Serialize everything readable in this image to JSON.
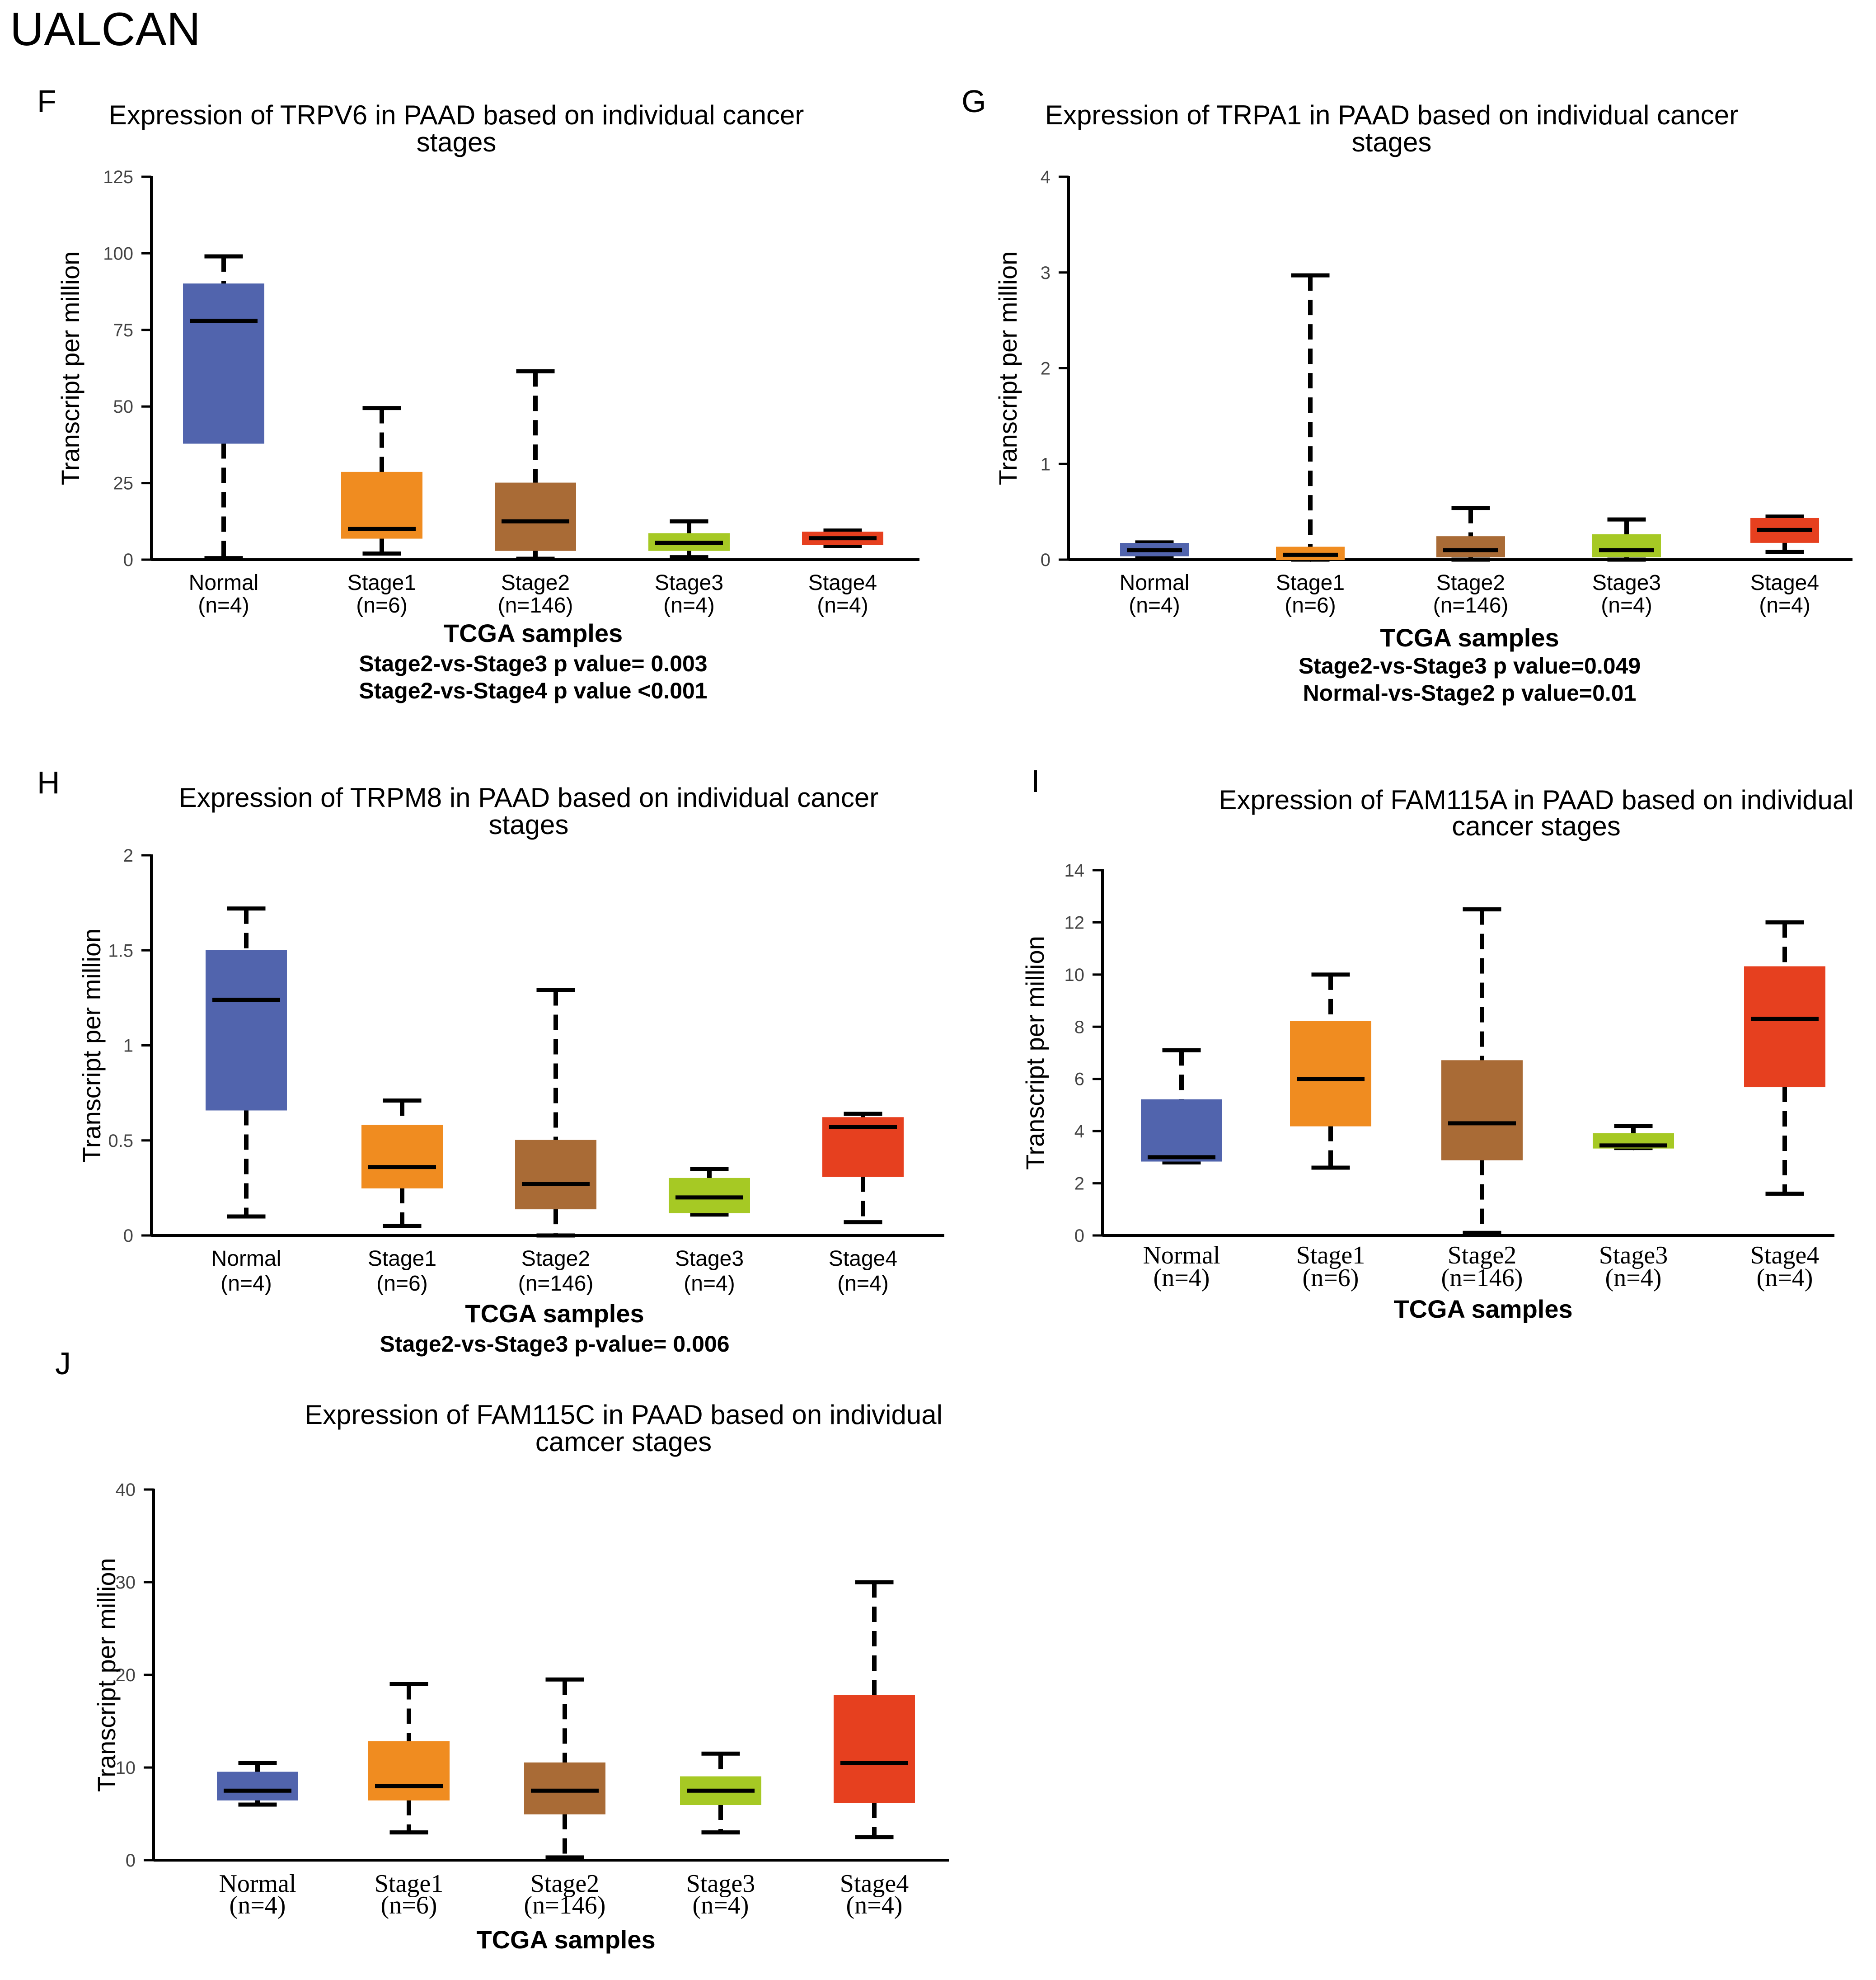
{
  "header": {
    "title": "UALCAN"
  },
  "colors": {
    "Normal": "#5164ad",
    "Stage1": "#f08c20",
    "Stage2": "#a96b36",
    "Stage3": "#a6c924",
    "Stage4": "#e6401f"
  },
  "chart_data": [
    {
      "id": "F",
      "panel_label": "F",
      "type": "boxplot",
      "title": [
        "Expression of TRPV6 in PAAD based on individual cancer",
        "stages"
      ],
      "ylabel": "Transcript per million",
      "xlabel": "TCGA samples",
      "ylim": [
        0,
        125
      ],
      "yticks": [
        "0",
        "25",
        "50",
        "75",
        "100",
        "125"
      ],
      "categories": [
        "Normal",
        "Stage1",
        "Stage2",
        "Stage3",
        "Stage4"
      ],
      "n_labels": [
        "(n=4)",
        "(n=6)",
        "(n=146)",
        "(n=4)",
        "(n=4)"
      ],
      "boxes": [
        {
          "min": 0.5,
          "q1": 38,
          "median": 78,
          "q3": 90,
          "max": 99
        },
        {
          "min": 2,
          "q1": 7,
          "median": 10,
          "q3": 28.5,
          "max": 49.5
        },
        {
          "min": 0.3,
          "q1": 3,
          "median": 12.5,
          "q3": 25,
          "max": 61.5
        },
        {
          "min": 0.8,
          "q1": 3,
          "median": 5.5,
          "q3": 8.5,
          "max": 12.5
        },
        {
          "min": 4.5,
          "q1": 5,
          "median": 7,
          "q3": 9,
          "max": 9.5
        }
      ],
      "stats": [
        "Stage2-vs-Stage3 p value= 0.003",
        "Stage2-vs-Stage4 p value <0.001"
      ]
    },
    {
      "id": "G",
      "panel_label": "G",
      "type": "boxplot",
      "title": [
        "Expression of TRPA1 in PAAD based on individual cancer",
        "stages"
      ],
      "ylabel": "Transcript per million",
      "xlabel": "TCGA samples",
      "ylim": [
        0,
        4
      ],
      "yticks": [
        "0",
        "1",
        "2",
        "3",
        "4"
      ],
      "categories": [
        "Normal",
        "Stage1",
        "Stage2",
        "Stage3",
        "Stage4"
      ],
      "n_labels": [
        "(n=4)",
        "(n=6)",
        "(n=146)",
        "(n=4)",
        "(n=4)"
      ],
      "boxes": [
        {
          "min": 0.03,
          "q1": 0.04,
          "median": 0.1,
          "q3": 0.17,
          "max": 0.18
        },
        {
          "min": 0.0,
          "q1": 0.0,
          "median": 0.05,
          "q3": 0.13,
          "max": 2.97
        },
        {
          "min": 0.0,
          "q1": 0.03,
          "median": 0.1,
          "q3": 0.24,
          "max": 0.54
        },
        {
          "min": 0.0,
          "q1": 0.03,
          "median": 0.1,
          "q3": 0.26,
          "max": 0.42
        },
        {
          "min": 0.08,
          "q1": 0.18,
          "median": 0.31,
          "q3": 0.43,
          "max": 0.45
        }
      ],
      "stats": [
        "Stage2-vs-Stage3 p value=0.049",
        "Normal-vs-Stage2 p value=0.01"
      ]
    },
    {
      "id": "H",
      "panel_label": "H",
      "type": "boxplot",
      "title": [
        "Expression of TRPM8 in PAAD based on individual cancer",
        "stages"
      ],
      "ylabel": "Transcript per million",
      "xlabel": "TCGA samples",
      "ylim": [
        0,
        2
      ],
      "yticks": [
        "0",
        "0.5",
        "1",
        "1.5",
        "2"
      ],
      "categories": [
        "Normal",
        "Stage1",
        "Stage2",
        "Stage3",
        "Stage4"
      ],
      "n_labels": [
        "(n=4)",
        "(n=6)",
        "(n=146)",
        "(n=4)",
        "(n=4)"
      ],
      "boxes": [
        {
          "min": 0.1,
          "q1": 0.66,
          "median": 1.24,
          "q3": 1.5,
          "max": 1.72
        },
        {
          "min": 0.05,
          "q1": 0.25,
          "median": 0.36,
          "q3": 0.58,
          "max": 0.71
        },
        {
          "min": 0.0,
          "q1": 0.14,
          "median": 0.27,
          "q3": 0.5,
          "max": 1.29
        },
        {
          "min": 0.11,
          "q1": 0.12,
          "median": 0.2,
          "q3": 0.3,
          "max": 0.35
        },
        {
          "min": 0.07,
          "q1": 0.31,
          "median": 0.57,
          "q3": 0.62,
          "max": 0.64
        }
      ],
      "stats": [
        "Stage2-vs-Stage3 p-value= 0.006"
      ]
    },
    {
      "id": "I",
      "panel_label": "I",
      "type": "boxplot",
      "serif_categories": true,
      "title": [
        "Expression of FAM115A in PAAD based on individual",
        "cancer stages"
      ],
      "ylabel": "Transcript per million",
      "xlabel": "TCGA samples",
      "ylim": [
        0,
        14
      ],
      "yticks": [
        "0",
        "2",
        "4",
        "6",
        "8",
        "10",
        "12",
        "14"
      ],
      "categories": [
        "Normal",
        "Stage1",
        "Stage2",
        "Stage3",
        "Stage4"
      ],
      "n_labels": [
        "(n=4)",
        "(n=6)",
        "(n=146)",
        "(n=4)",
        "(n=4)"
      ],
      "boxes": [
        {
          "min": 2.8,
          "q1": 2.85,
          "median": 3.0,
          "q3": 5.2,
          "max": 7.1
        },
        {
          "min": 2.6,
          "q1": 4.2,
          "median": 6.0,
          "q3": 8.2,
          "max": 10.0
        },
        {
          "min": 0.1,
          "q1": 2.9,
          "median": 4.3,
          "q3": 6.7,
          "max": 12.5
        },
        {
          "min": 3.35,
          "q1": 3.35,
          "median": 3.45,
          "q3": 3.9,
          "max": 4.2
        },
        {
          "min": 1.6,
          "q1": 5.7,
          "median": 8.3,
          "q3": 10.3,
          "max": 12.0
        }
      ],
      "stats": []
    },
    {
      "id": "J",
      "panel_label": "J",
      "type": "boxplot",
      "serif_categories": true,
      "title": [
        "Expression of FAM115C in PAAD based on individual",
        "camcer stages"
      ],
      "ylabel": "Transcript per million",
      "xlabel": "TCGA samples",
      "ylim": [
        0,
        40
      ],
      "yticks": [
        "0",
        "10",
        "20",
        "30",
        "40"
      ],
      "categories": [
        "Normal",
        "Stage1",
        "Stage2",
        "Stage3",
        "Stage4"
      ],
      "n_labels": [
        "(n=4)",
        "(n=6)",
        "(n=146)",
        "(n=4)",
        "(n=4)"
      ],
      "boxes": [
        {
          "min": 6,
          "q1": 6.5,
          "median": 7.5,
          "q3": 9.5,
          "max": 10.5
        },
        {
          "min": 3,
          "q1": 6.5,
          "median": 8,
          "q3": 12.8,
          "max": 19
        },
        {
          "min": 0.3,
          "q1": 5,
          "median": 7.5,
          "q3": 10.5,
          "max": 19.5
        },
        {
          "min": 3,
          "q1": 6,
          "median": 7.5,
          "q3": 9,
          "max": 11.5
        },
        {
          "min": 2.5,
          "q1": 6.2,
          "median": 10.5,
          "q3": 17.8,
          "max": 30
        }
      ],
      "stats": []
    }
  ]
}
